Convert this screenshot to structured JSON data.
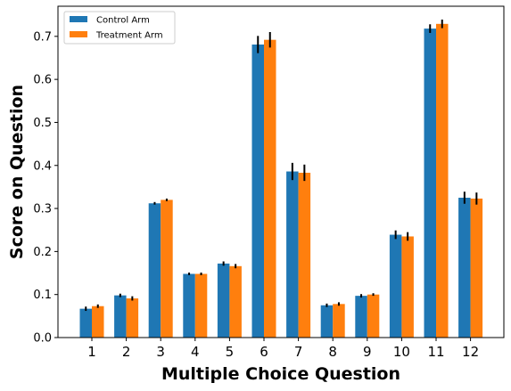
{
  "chart_data": {
    "type": "bar",
    "title": "",
    "xlabel": "Multiple Choice Question",
    "ylabel": "Score on Question",
    "categories": [
      "1",
      "2",
      "3",
      "4",
      "5",
      "6",
      "7",
      "8",
      "9",
      "10",
      "11",
      "12"
    ],
    "ylim": [
      0,
      0.77
    ],
    "yticks": [
      "0.0",
      "0.1",
      "0.2",
      "0.3",
      "0.4",
      "0.5",
      "0.6",
      "0.7"
    ],
    "grid": false,
    "legend_position": "top-left",
    "series": [
      {
        "name": "Control Arm",
        "color": "#1f77b4",
        "values": [
          0.067,
          0.098,
          0.312,
          0.148,
          0.172,
          0.681,
          0.386,
          0.075,
          0.097,
          0.239,
          0.718,
          0.325
        ],
        "errors": [
          0.005,
          0.004,
          0.003,
          0.003,
          0.005,
          0.02,
          0.02,
          0.004,
          0.004,
          0.01,
          0.01,
          0.014
        ]
      },
      {
        "name": "Treatment Arm",
        "color": "#ff7f0e",
        "values": [
          0.073,
          0.091,
          0.32,
          0.148,
          0.166,
          0.692,
          0.383,
          0.078,
          0.1,
          0.235,
          0.729,
          0.323
        ],
        "errors": [
          0.004,
          0.005,
          0.003,
          0.003,
          0.005,
          0.018,
          0.019,
          0.004,
          0.003,
          0.01,
          0.01,
          0.014
        ]
      }
    ]
  }
}
